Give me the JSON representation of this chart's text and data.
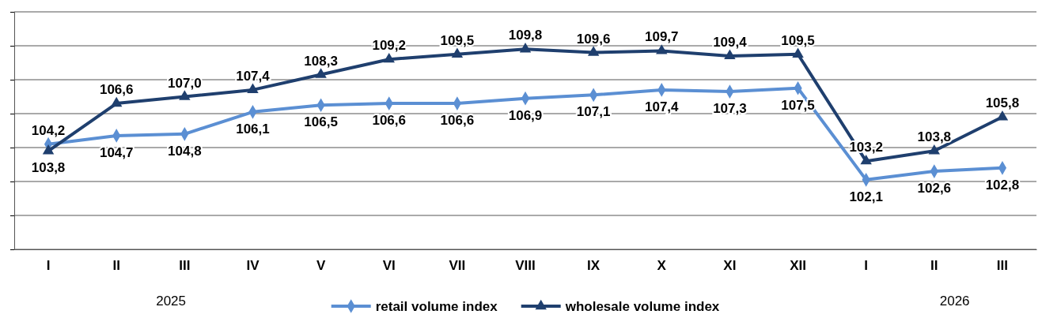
{
  "chart_data": {
    "type": "line",
    "categories": [
      "I",
      "II",
      "III",
      "IV",
      "V",
      "VI",
      "VII",
      "VIII",
      "IX",
      "X",
      "XI",
      "XII",
      "I",
      "II",
      "III"
    ],
    "ylim": [
      98,
      112
    ],
    "yticks": [
      {
        "value": 98,
        "label": null
      },
      {
        "value": 100,
        "label": null
      },
      {
        "value": 102,
        "label": null
      },
      {
        "value": 104,
        "label": null
      },
      {
        "value": 106,
        "label": null
      },
      {
        "value": 108,
        "label": null
      },
      {
        "value": 110,
        "label": null
      },
      {
        "value": 112,
        "label": null
      }
    ],
    "tick_labels": "x",
    "grid": "y",
    "legend": "bottom",
    "line_style": "solid",
    "series": [
      {
        "name": "retail volume index",
        "color": "#5b8fd3",
        "marker": "diamond",
        "values": [
          104.2,
          104.7,
          104.8,
          106.1,
          106.5,
          106.6,
          106.6,
          106.9,
          107.1,
          107.4,
          107.3,
          107.5,
          102.1,
          102.6,
          102.8
        ],
        "value_labels": [
          "104,2",
          "104,7",
          "104,8",
          "106,1",
          "106,5",
          "106,6",
          "106,6",
          "106,9",
          "107,1",
          "107,4",
          "107,3",
          "107,5",
          "102,1",
          "102,6",
          "102,8"
        ]
      },
      {
        "name": "wholesale volume index",
        "color": "#1f3f6e",
        "marker": "triangle",
        "values": [
          103.8,
          106.6,
          107.0,
          107.4,
          108.3,
          109.2,
          109.5,
          109.8,
          109.6,
          109.7,
          109.4,
          109.5,
          103.2,
          103.8,
          105.8
        ],
        "value_labels": [
          "103,8",
          "106,6",
          "107,0",
          "107,4",
          "108,3",
          "109,2",
          "109,5",
          "109,8",
          "109,6",
          "109,7",
          "109,4",
          "109,5",
          "103,2",
          "103,8",
          "105,8"
        ]
      }
    ],
    "annotations": [
      "2025",
      "2026"
    ]
  }
}
